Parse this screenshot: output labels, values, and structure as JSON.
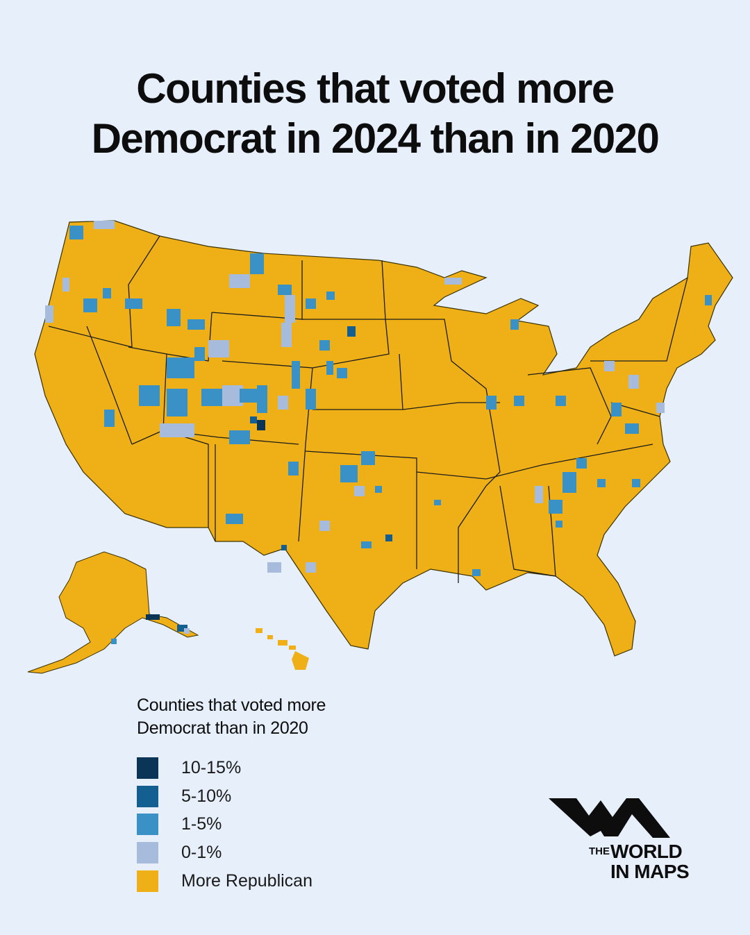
{
  "title": {
    "line1": "Counties that voted more",
    "line2": "Democrat in 2024 than in 2020"
  },
  "legend": {
    "title_line1": "Counties that voted more",
    "title_line2": "Democrat than in 2020",
    "items": [
      {
        "label": "10-15%",
        "color": "#0b3556"
      },
      {
        "label": "5-10%",
        "color": "#135f92"
      },
      {
        "label": "1-5%",
        "color": "#3a91c5"
      },
      {
        "label": "0-1%",
        "color": "#a7bcdc"
      },
      {
        "label": "More Republican",
        "color": "#eeb016"
      }
    ]
  },
  "map": {
    "base_color": "#eeb016",
    "border_color": "#1c1c1c"
  },
  "logo": {
    "the": "THE",
    "line1": "WORLD",
    "line2": "IN MAPS"
  }
}
